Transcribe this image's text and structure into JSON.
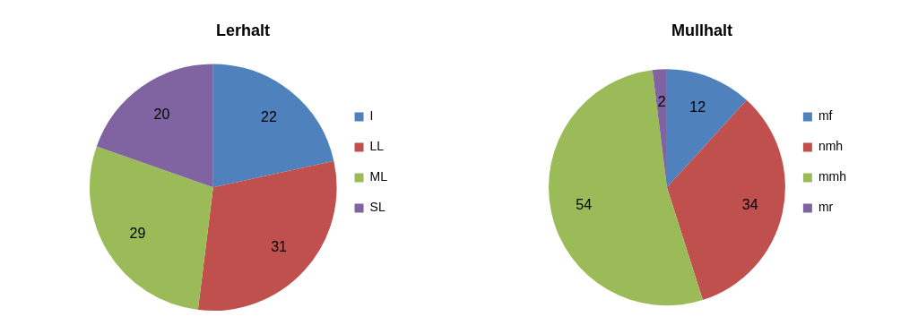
{
  "chart_data": [
    {
      "type": "pie",
      "title": "Lerhalt",
      "categories": [
        "I",
        "LL",
        "ML",
        "SL"
      ],
      "values": [
        22,
        31,
        29,
        20
      ],
      "colors": [
        "#4f81bd",
        "#c0504d",
        "#9bbb59",
        "#8064a2"
      ],
      "data_labels": true,
      "legend": "right"
    },
    {
      "type": "pie",
      "title": "Mullhalt",
      "categories": [
        "mf",
        "nmh",
        "mmh",
        "mr"
      ],
      "values": [
        12,
        34,
        54,
        2
      ],
      "colors": [
        "#4f81bd",
        "#c0504d",
        "#9bbb59",
        "#8064a2"
      ],
      "data_labels": true,
      "legend": "right"
    }
  ]
}
